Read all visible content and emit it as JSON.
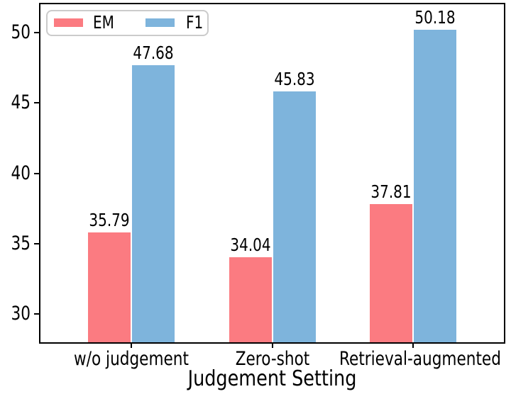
{
  "chart_data": {
    "type": "bar",
    "title": "",
    "xlabel": "Judgement Setting",
    "ylabel": "",
    "categories": [
      "w/o judgement",
      "Zero-shot",
      "Retrieval-augmented"
    ],
    "series": [
      {
        "name": "EM",
        "color": "#FB7B81",
        "values": [
          35.79,
          34.04,
          37.81
        ]
      },
      {
        "name": "F1",
        "color": "#7EB4DC",
        "values": [
          47.68,
          45.83,
          50.18
        ]
      }
    ],
    "value_labels": [
      [
        "35.79",
        "34.04",
        "37.81"
      ],
      [
        "47.68",
        "45.83",
        "50.18"
      ]
    ],
    "ylim": [
      28,
      52
    ],
    "yticks": [
      30,
      35,
      40,
      45,
      50
    ],
    "ytick_labels": [
      "30",
      "35",
      "40",
      "45",
      "50"
    ],
    "grid": false,
    "legend_position": "upper left",
    "bar_labels": true,
    "colors": {
      "spine": "#000000",
      "text": "#000000",
      "legend_border": "#cbcbcb",
      "background": "#ffffff"
    }
  },
  "legend": {
    "items": [
      {
        "label": "EM",
        "color": "#FB7B81"
      },
      {
        "label": "F1",
        "color": "#7EB4DC"
      }
    ]
  }
}
